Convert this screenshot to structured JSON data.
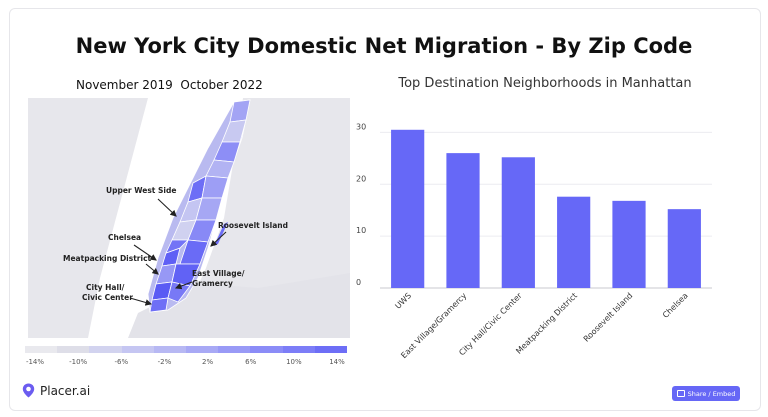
{
  "title": "New York City Domestic Net Migration - By Zip Code",
  "map": {
    "date_range": "November 2019  October 2022",
    "labels": {
      "upper_west_side": "Upper West Side",
      "roosevelt_island": "Roosevelt Island",
      "chelsea": "Chelsea",
      "meatpacking": "Meatpacking District",
      "east_village_1": "East Village/",
      "east_village_2": "Gramercy",
      "city_hall_1": "City Hall/",
      "city_hall_2": "Civic Center"
    },
    "legend_labels": [
      "-14%",
      "-10%",
      "-6%",
      "-2%",
      "2%",
      "6%",
      "10%",
      "14%"
    ],
    "legend_colors": [
      "#e9e9ee",
      "#dedee8",
      "#d2d3ef",
      "#c5c6f2",
      "#b7b8f3",
      "#a8a9f5",
      "#999af6",
      "#8b8cf7",
      "#7c7df7",
      "#6d6ef6"
    ]
  },
  "chart_subtitle": "Top Destination Neighborhoods in Manhattan",
  "chart_data": {
    "type": "bar",
    "title": "Top Destination Neighborhoods in Manhattan",
    "categories": [
      "UWS",
      "East Village/Gramercy",
      "City Hall/Civic Center",
      "Meatpacking District",
      "Roosevelt Island",
      "Chelsea"
    ],
    "values": [
      30.5,
      26,
      25.2,
      17.6,
      16.8,
      15.2
    ],
    "yticks": [
      0,
      10,
      20,
      30
    ],
    "ylim": [
      0,
      32
    ],
    "grid": true,
    "bar_color": "#6668f7"
  },
  "footer": {
    "brand": "Placer.ai",
    "share_label": "Share / Embed"
  }
}
